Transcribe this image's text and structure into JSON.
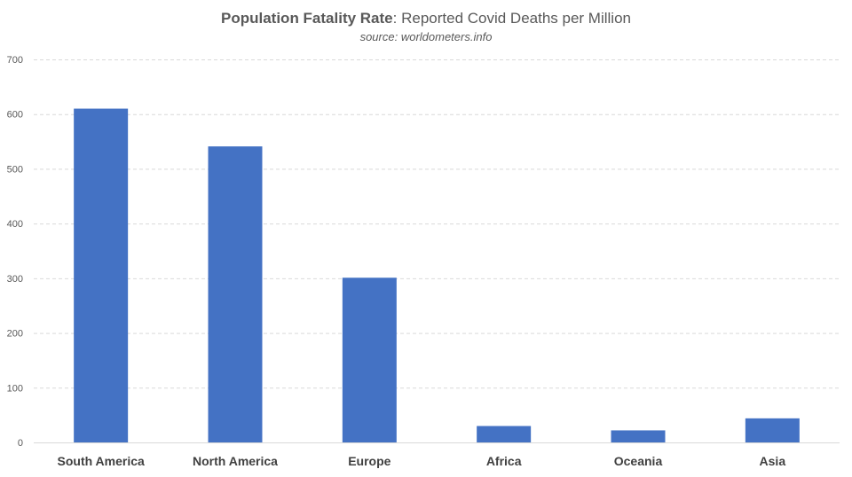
{
  "chart_data": {
    "type": "bar",
    "title_bold": "Population Fatality Rate",
    "title_rest": ": Reported Covid Deaths per Million",
    "subtitle": "source: worldometers.info",
    "xlabel": "",
    "ylabel": "",
    "categories": [
      "South America",
      "North America",
      "Europe",
      "Africa",
      "Oceania",
      "Asia"
    ],
    "values": [
      610,
      541,
      301,
      30,
      22,
      44
    ],
    "ylim": [
      0,
      700
    ],
    "yticks": [
      0,
      100,
      200,
      300,
      400,
      500,
      600,
      700
    ],
    "grid": true,
    "bar_color": "#4472c4"
  }
}
